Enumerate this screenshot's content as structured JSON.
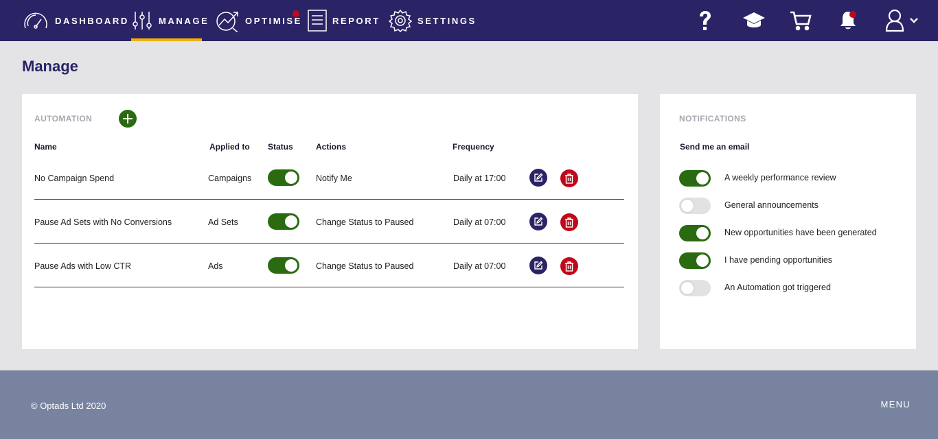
{
  "nav": {
    "items": [
      {
        "label": "DASHBOARD",
        "icon": "gauge-icon"
      },
      {
        "label": "MANAGE",
        "icon": "sliders-icon",
        "active": true
      },
      {
        "label": "OPTIMISE",
        "icon": "trend-chart-icon",
        "badge": true
      },
      {
        "label": "REPORT",
        "icon": "document-icon"
      },
      {
        "label": "SETTINGS",
        "icon": "gear-icon"
      }
    ],
    "right_icons": [
      "help-icon",
      "graduation-cap-icon",
      "cart-icon",
      "bell-icon",
      "user-icon",
      "chevron-down-icon"
    ],
    "active_color": "#f2b200",
    "badge_color": "#c0081b"
  },
  "page": {
    "title": "Manage"
  },
  "automation": {
    "label": "AUTOMATION",
    "columns": [
      "Name",
      "Applied to",
      "Status",
      "Actions",
      "Frequency"
    ],
    "rows": [
      {
        "name": "No Campaign Spend",
        "applied_to": "Campaigns",
        "status_on": true,
        "action": "Notify Me",
        "frequency": "Daily at 17:00"
      },
      {
        "name": "Pause Ad Sets with No Conversions",
        "applied_to": "Ad Sets",
        "status_on": true,
        "action": "Change Status to Paused",
        "frequency": "Daily at 07:00"
      },
      {
        "name": "Pause Ads with Low CTR",
        "applied_to": "Ads",
        "status_on": true,
        "action": "Change Status to Paused",
        "frequency": "Daily at 07:00"
      }
    ]
  },
  "notifications": {
    "label": "NOTIFICATIONS",
    "heading": "Send me an email",
    "items": [
      {
        "label": "A weekly performance review",
        "on": true
      },
      {
        "label": "General announcements",
        "on": false
      },
      {
        "label": "New opportunities have been generated",
        "on": true
      },
      {
        "label": "I have pending opportunities",
        "on": true
      },
      {
        "label": "An Automation got triggered",
        "on": false
      }
    ]
  },
  "footer": {
    "copyright": "© Optads Ltd 2020",
    "menu": "MENU"
  },
  "colors": {
    "nav_bg": "#2a2466",
    "toggle_on": "#2a6b12",
    "delete": "#c0081b",
    "footer_bg": "#7883a0"
  }
}
